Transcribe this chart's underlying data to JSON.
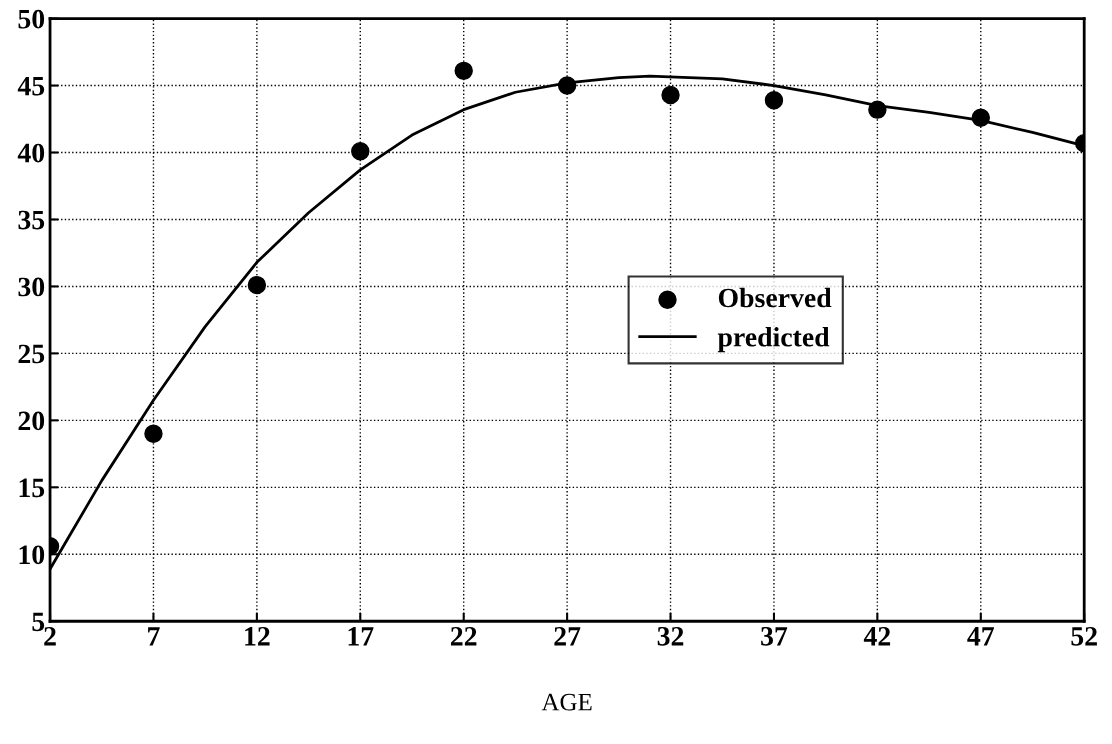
{
  "chart_data": {
    "type": "scatter",
    "xlabel": "AGE",
    "xlim": [
      2,
      52
    ],
    "xticks": [
      2,
      7,
      12,
      17,
      22,
      27,
      32,
      37,
      42,
      47,
      52
    ],
    "ylim": [
      5,
      50
    ],
    "yticks": [
      5,
      10,
      15,
      20,
      25,
      30,
      35,
      40,
      45,
      50
    ],
    "grid": true,
    "legend": "right",
    "series": [
      {
        "name": "Observed",
        "marker": "circle",
        "color": "#000000",
        "x": [
          2,
          7,
          12,
          17,
          22,
          27,
          32,
          37,
          42,
          47,
          52
        ],
        "values": [
          10.6,
          19.0,
          30.1,
          40.1,
          46.1,
          45.0,
          44.3,
          43.9,
          43.2,
          42.6,
          40.7
        ]
      },
      {
        "name": "predicted",
        "type": "line",
        "marker": "none",
        "line_style": "solid",
        "color": "#000000",
        "x": [
          2,
          4.5,
          7,
          9.5,
          12,
          14.5,
          17,
          19.5,
          22,
          24.5,
          27,
          29.5,
          31,
          34.5,
          37,
          39.5,
          42,
          44.5,
          47,
          49.5,
          52
        ],
        "values": [
          8.9,
          15.5,
          21.5,
          27.0,
          31.8,
          35.5,
          38.7,
          41.3,
          43.2,
          44.5,
          45.2,
          45.6,
          45.7,
          45.5,
          45.0,
          44.3,
          43.5,
          43.0,
          42.4,
          41.5,
          40.5
        ]
      }
    ]
  }
}
